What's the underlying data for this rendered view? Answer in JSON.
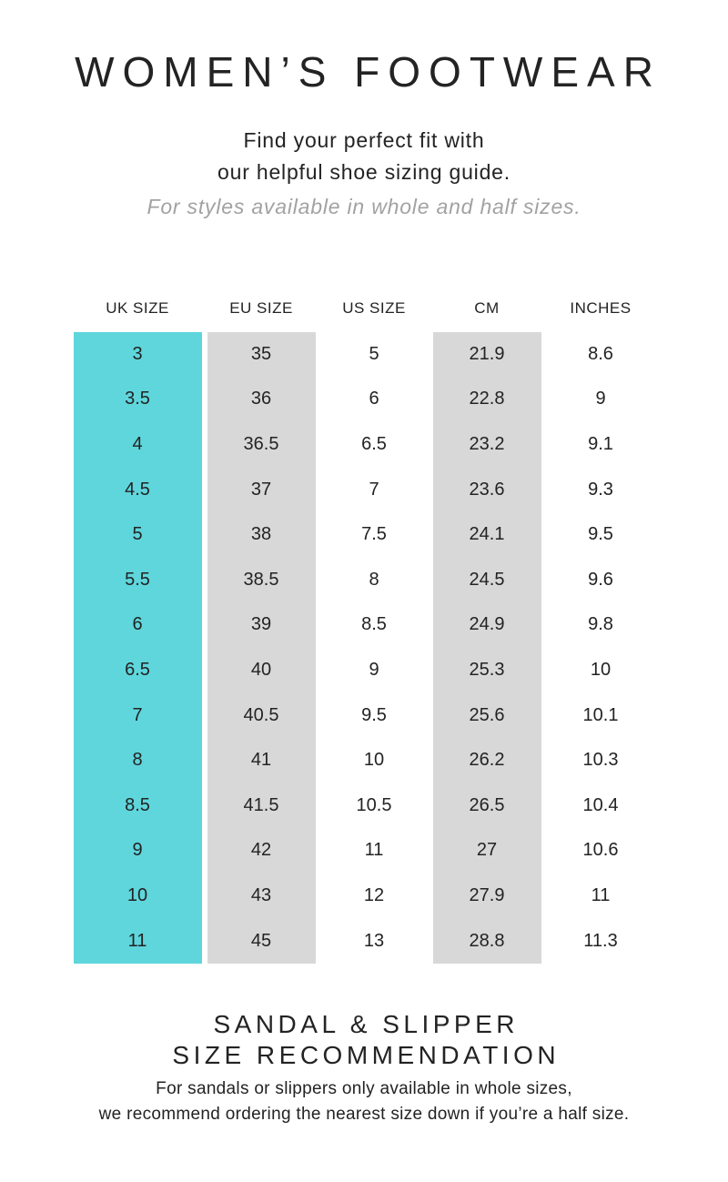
{
  "header": {
    "title": "WOMEN’S FOOTWEAR",
    "subtitle_lines": [
      "Find your perfect fit with",
      "our helpful shoe sizing guide."
    ],
    "note": "For styles available in whole and half sizes."
  },
  "chart_data": {
    "type": "table",
    "columns": [
      "UK SIZE",
      "EU SIZE",
      "US SIZE",
      "CM",
      "INCHES"
    ],
    "rows": [
      [
        "3",
        "35",
        "5",
        "21.9",
        "8.6"
      ],
      [
        "3.5",
        "36",
        "6",
        "22.8",
        "9"
      ],
      [
        "4",
        "36.5",
        "6.5",
        "23.2",
        "9.1"
      ],
      [
        "4.5",
        "37",
        "7",
        "23.6",
        "9.3"
      ],
      [
        "5",
        "38",
        "7.5",
        "24.1",
        "9.5"
      ],
      [
        "5.5",
        "38.5",
        "8",
        "24.5",
        "9.6"
      ],
      [
        "6",
        "39",
        "8.5",
        "24.9",
        "9.8"
      ],
      [
        "6.5",
        "40",
        "9",
        "25.3",
        "10"
      ],
      [
        "7",
        "40.5",
        "9.5",
        "25.6",
        "10.1"
      ],
      [
        "8",
        "41",
        "10",
        "26.2",
        "10.3"
      ],
      [
        "8.5",
        "41.5",
        "10.5",
        "26.5",
        "10.4"
      ],
      [
        "9",
        "42",
        "11",
        "27",
        "10.6"
      ],
      [
        "10",
        "43",
        "12",
        "27.9",
        "11"
      ],
      [
        "11",
        "45",
        "13",
        "28.8",
        "11.3"
      ]
    ],
    "column_backgrounds": [
      "#5ed6dc",
      "#d8d8d8",
      "none",
      "#d8d8d8",
      "none"
    ]
  },
  "footer": {
    "heading_lines": [
      "SANDAL & SLIPPER",
      "SIZE RECOMMENDATION"
    ],
    "body_lines": [
      "For sandals or slippers only available in whole sizes,",
      "we recommend ordering the nearest size down if you’re a half size."
    ]
  },
  "colors": {
    "uk_column": "#5ed6dc",
    "striped_column": "#d8d8d8",
    "text": "#232323",
    "muted_text": "#a2a2a2"
  }
}
